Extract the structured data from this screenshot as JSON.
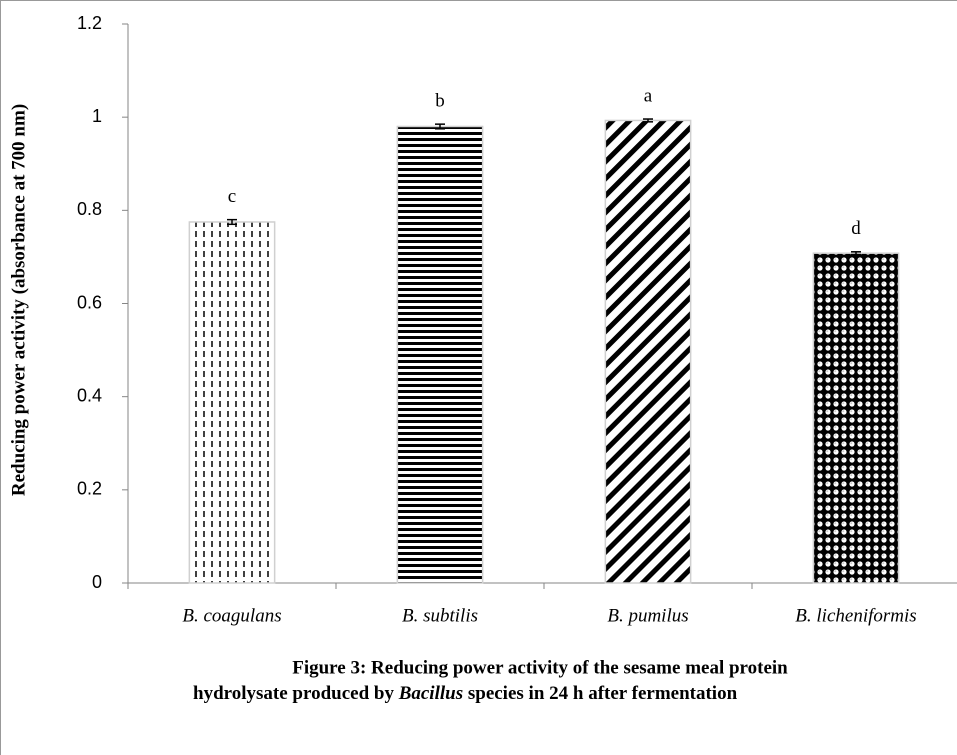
{
  "chart_data": {
    "type": "bar",
    "y_label": "Reducing power activity (absorbance at 700 nm)",
    "categories": [
      "B. coagulans",
      "B. subtilis",
      "B. pumilus",
      "B. licheniformis"
    ],
    "values": [
      0.775,
      0.98,
      0.993,
      0.708
    ],
    "errors": [
      0.005,
      0.005,
      0.003,
      0.003
    ],
    "significance_labels": [
      "c",
      "b",
      "a",
      "d"
    ],
    "patterns": [
      "vertical-dash",
      "horizontal",
      "diagonal",
      "dots"
    ],
    "color": "#000000",
    "ylim": [
      0,
      1.2
    ],
    "yticks": [
      0,
      0.2,
      0.4,
      0.6,
      0.8,
      1,
      1.2
    ],
    "grid": false,
    "caption": {
      "line1": "Figure 3: Reducing power activity of the sesame meal protein",
      "line2_before": "hydrolysate produced by",
      "line2_italic": "Bacillus",
      "line2_after": "species in 24 h after fermentation"
    }
  }
}
